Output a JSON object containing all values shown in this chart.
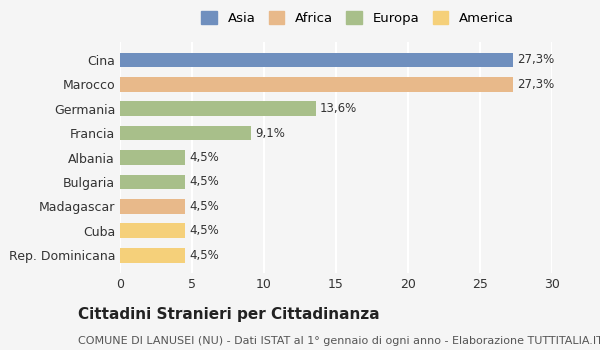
{
  "categories": [
    "Cina",
    "Marocco",
    "Germania",
    "Francia",
    "Albania",
    "Bulgaria",
    "Madagascar",
    "Cuba",
    "Rep. Dominicana"
  ],
  "values": [
    27.3,
    27.3,
    13.6,
    9.1,
    4.5,
    4.5,
    4.5,
    4.5,
    4.5
  ],
  "colors": [
    "#6f8fbe",
    "#e8b98a",
    "#a8bf8a",
    "#a8bf8a",
    "#a8bf8a",
    "#a8bf8a",
    "#e8b98a",
    "#f5d07a",
    "#f5d07a"
  ],
  "labels": [
    "27,3%",
    "27,3%",
    "13,6%",
    "9,1%",
    "4,5%",
    "4,5%",
    "4,5%",
    "4,5%",
    "4,5%"
  ],
  "legend_labels": [
    "Asia",
    "Africa",
    "Europa",
    "America"
  ],
  "legend_colors": [
    "#6f8fbe",
    "#e8b98a",
    "#a8bf8a",
    "#f5d07a"
  ],
  "xlim": [
    0,
    30
  ],
  "xticks": [
    0,
    5,
    10,
    15,
    20,
    25,
    30
  ],
  "title": "Cittadini Stranieri per Cittadinanza",
  "subtitle": "COMUNE DI LANUSEI (NU) - Dati ISTAT al 1° gennaio di ogni anno - Elaborazione TUTTITALIA.IT",
  "background_color": "#f5f5f5",
  "grid_color": "#ffffff",
  "bar_height": 0.6,
  "title_fontsize": 11,
  "subtitle_fontsize": 8,
  "label_fontsize": 8.5,
  "tick_fontsize": 9
}
